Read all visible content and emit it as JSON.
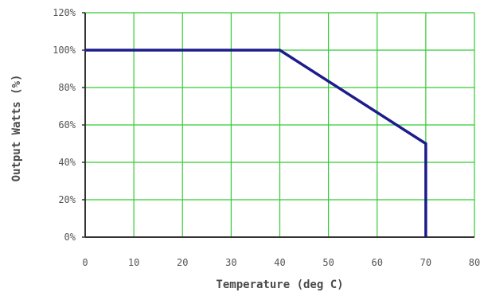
{
  "chart_data": {
    "type": "line",
    "title": "",
    "xlabel": "Temperature (deg C)",
    "ylabel": "Output Watts (%)",
    "xlim": [
      0,
      80
    ],
    "ylim": [
      0,
      120
    ],
    "x_ticks": [
      "0",
      "10",
      "20",
      "30",
      "40",
      "50",
      "60",
      "70",
      "80"
    ],
    "y_ticks": [
      "0%",
      "20%",
      "40%",
      "60%",
      "80%",
      "100%",
      "120%"
    ],
    "grid": true,
    "series": [
      {
        "x": [
          0,
          40,
          70,
          70
        ],
        "y": [
          100,
          100,
          50,
          0
        ]
      }
    ],
    "colors": {
      "line": "#1c1c8c",
      "grid": "#33cc33",
      "axis": "#333333"
    }
  }
}
